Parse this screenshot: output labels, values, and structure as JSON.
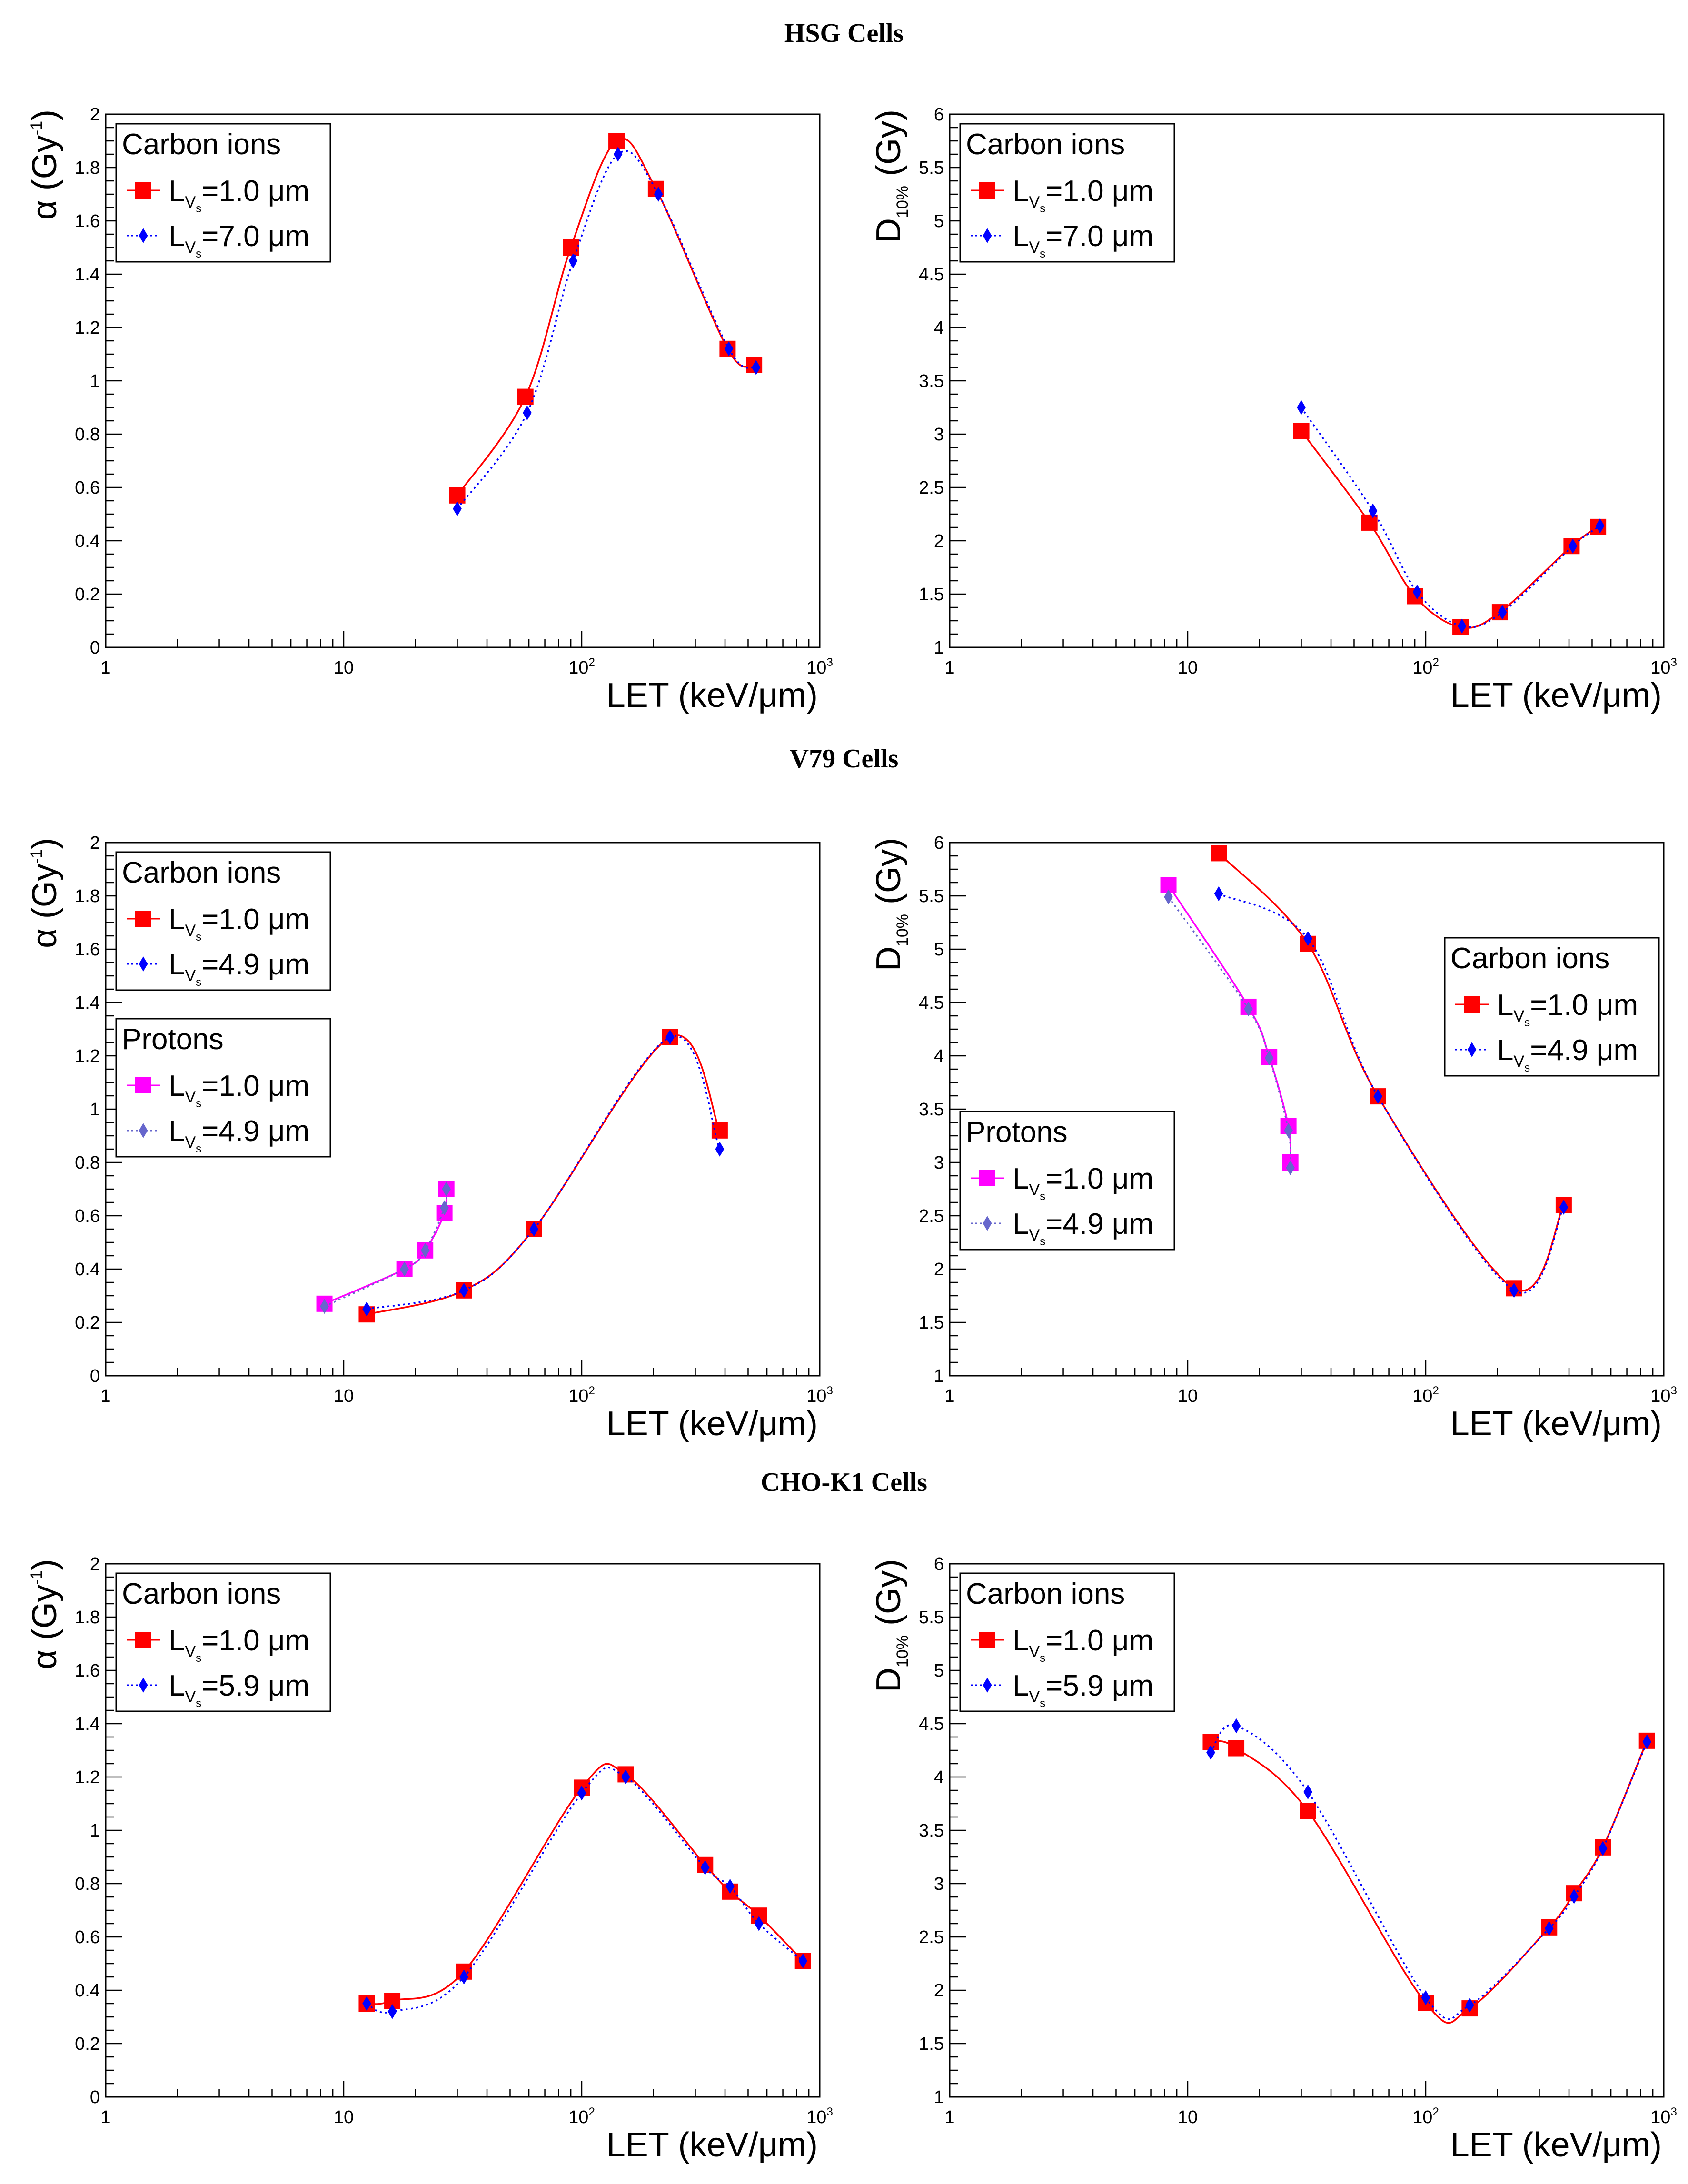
{
  "sections": [
    {
      "title": "HSG Cells"
    },
    {
      "title": "V79 Cells"
    },
    {
      "title": "CHO-K1 Cells"
    }
  ],
  "chart_data": [
    {
      "id": "hsg-alpha",
      "type": "line",
      "xscale": "log",
      "xlim": [
        1,
        1000
      ],
      "ylim": [
        0,
        2
      ],
      "xticks": [
        "1",
        "10",
        "10^2",
        "10^3"
      ],
      "yticks": [
        "0",
        "0.2",
        "0.4",
        "0.6",
        "0.8",
        "1",
        "1.2",
        "1.4",
        "1.6",
        "1.8",
        "2"
      ],
      "xlabel": "LET (keV/μm)",
      "ylabel": "α (Gy^-1)",
      "legends": [
        {
          "title": "Carbon ions",
          "position": "top-left",
          "entries": [
            {
              "text": "L_Vs=1.0 μm",
              "series": "Carbon ions L=1.0"
            },
            {
              "text": "L_Vs=7.0 μm",
              "series": "Carbon ions L=7.0"
            }
          ]
        }
      ],
      "series": [
        {
          "name": "Carbon ions L=1.0",
          "color": "#ff0000",
          "marker": "square",
          "style": "solid",
          "x": [
            30,
            58,
            90,
            140,
            205,
            410,
            530
          ],
          "y": [
            0.57,
            0.94,
            1.5,
            1.9,
            1.72,
            1.12,
            1.06
          ]
        },
        {
          "name": "Carbon ions L=7.0",
          "color": "#0000ff",
          "marker": "diamond",
          "style": "dotted",
          "x": [
            30,
            59,
            92,
            142,
            210,
            415,
            540
          ],
          "y": [
            0.52,
            0.88,
            1.45,
            1.85,
            1.7,
            1.12,
            1.05
          ]
        }
      ]
    },
    {
      "id": "hsg-d10",
      "type": "line",
      "xscale": "log",
      "xlim": [
        1,
        1000
      ],
      "ylim": [
        1,
        6
      ],
      "xticks": [
        "1",
        "10",
        "10^2",
        "10^3"
      ],
      "yticks": [
        "1",
        "1.5",
        "2",
        "2.5",
        "3",
        "3.5",
        "4",
        "4.5",
        "5",
        "5.5",
        "6"
      ],
      "xlabel": "LET (keV/μm)",
      "ylabel": "D10% (Gy)",
      "legends": [
        {
          "title": "Carbon ions",
          "position": "top-left",
          "entries": [
            {
              "text": "L_Vs=1.0 μm",
              "series": "Carbon ions L=1.0"
            },
            {
              "text": "L_Vs=7.0 μm",
              "series": "Carbon ions L=7.0"
            }
          ]
        }
      ],
      "series": [
        {
          "name": "Carbon ions L=1.0",
          "color": "#ff0000",
          "marker": "square",
          "style": "solid",
          "x": [
            30,
            58,
            90,
            140,
            205,
            410,
            530
          ],
          "y": [
            3.03,
            2.17,
            1.48,
            1.19,
            1.33,
            1.95,
            2.13
          ]
        },
        {
          "name": "Carbon ions L=7.0",
          "color": "#0000ff",
          "marker": "diamond",
          "style": "dotted",
          "x": [
            30,
            60,
            92,
            142,
            210,
            415,
            540
          ],
          "y": [
            3.25,
            2.28,
            1.52,
            1.2,
            1.33,
            1.95,
            2.14
          ]
        }
      ]
    },
    {
      "id": "v79-alpha",
      "type": "line",
      "xscale": "log",
      "xlim": [
        1,
        1000
      ],
      "ylim": [
        0,
        2
      ],
      "xticks": [
        "1",
        "10",
        "10^2",
        "10^3"
      ],
      "yticks": [
        "0",
        "0.2",
        "0.4",
        "0.6",
        "0.8",
        "1",
        "1.2",
        "1.4",
        "1.6",
        "1.8",
        "2"
      ],
      "xlabel": "LET (keV/μm)",
      "ylabel": "α (Gy^-1)",
      "legends": [
        {
          "title": "Carbon ions",
          "position": "top-left",
          "entries": [
            {
              "text": "L_Vs=1.0 μm",
              "series": "Carbon ions L=1.0"
            },
            {
              "text": "L_Vs=4.9 μm",
              "series": "Carbon ions L=4.9"
            }
          ]
        },
        {
          "title": "Protons",
          "position": "middle-left",
          "entries": [
            {
              "text": "L_Vs=1.0 μm",
              "series": "Protons L=1.0"
            },
            {
              "text": "L_Vs=4.9 μm",
              "series": "Protons L=4.9"
            }
          ]
        }
      ],
      "series": [
        {
          "name": "Carbon ions L=1.0",
          "color": "#ff0000",
          "marker": "square",
          "style": "solid",
          "x": [
            12.5,
            32,
            63,
            235,
            380
          ],
          "y": [
            0.23,
            0.32,
            0.55,
            1.27,
            0.92
          ]
        },
        {
          "name": "Carbon ions L=4.9",
          "color": "#0000ff",
          "marker": "diamond",
          "style": "dotted",
          "x": [
            12.5,
            32,
            63,
            235,
            380
          ],
          "y": [
            0.25,
            0.32,
            0.55,
            1.27,
            0.85
          ]
        },
        {
          "name": "Protons L=1.0",
          "color": "#ff00ff",
          "marker": "square",
          "style": "solid",
          "x": [
            8.3,
            18,
            22,
            26.5,
            27
          ],
          "y": [
            0.27,
            0.4,
            0.47,
            0.61,
            0.7
          ]
        },
        {
          "name": "Protons L=4.9",
          "color": "#6666cc",
          "marker": "diamond",
          "style": "dotted",
          "x": [
            8.3,
            18,
            22,
            26.5,
            27
          ],
          "y": [
            0.26,
            0.4,
            0.47,
            0.63,
            0.7
          ]
        }
      ]
    },
    {
      "id": "v79-d10",
      "type": "line",
      "xscale": "log",
      "xlim": [
        1,
        1000
      ],
      "ylim": [
        1,
        6
      ],
      "xticks": [
        "1",
        "10",
        "10^2",
        "10^3"
      ],
      "yticks": [
        "1",
        "1.5",
        "2",
        "2.5",
        "3",
        "3.5",
        "4",
        "4.5",
        "5",
        "5.5",
        "6"
      ],
      "xlabel": "LET (keV/μm)",
      "ylabel": "D10% (Gy)",
      "legends": [
        {
          "title": "Carbon ions",
          "position": "right",
          "entries": [
            {
              "text": "L_Vs=1.0 μm",
              "series": "Carbon ions L=1.0"
            },
            {
              "text": "L_Vs=4.9 μm",
              "series": "Carbon ions L=4.9"
            }
          ]
        },
        {
          "title": "Protons",
          "position": "bottom-left",
          "entries": [
            {
              "text": "L_Vs=1.0 μm",
              "series": "Protons L=1.0"
            },
            {
              "text": "L_Vs=4.9 μm",
              "series": "Protons L=4.9"
            }
          ]
        }
      ],
      "series": [
        {
          "name": "Carbon ions L=1.0",
          "color": "#ff0000",
          "marker": "square",
          "style": "solid",
          "x": [
            13.5,
            32,
            63,
            235,
            380
          ],
          "y": [
            5.9,
            5.05,
            3.62,
            1.82,
            2.6
          ]
        },
        {
          "name": "Carbon ions L=4.9",
          "color": "#0000ff",
          "marker": "diamond",
          "style": "dotted",
          "x": [
            13.5,
            32,
            63,
            235,
            380
          ],
          "y": [
            5.52,
            5.1,
            3.62,
            1.8,
            2.58
          ]
        },
        {
          "name": "Protons L=1.0",
          "color": "#ff00ff",
          "marker": "square",
          "style": "solid",
          "x": [
            8.3,
            18,
            22,
            26.5,
            27
          ],
          "y": [
            5.6,
            4.46,
            3.99,
            3.34,
            3.0
          ]
        },
        {
          "name": "Protons L=4.9",
          "color": "#6666cc",
          "marker": "diamond",
          "style": "dotted",
          "x": [
            8.3,
            18,
            22,
            26.5,
            27
          ],
          "y": [
            5.49,
            4.44,
            3.98,
            3.3,
            2.95
          ]
        }
      ]
    },
    {
      "id": "cho-alpha",
      "type": "line",
      "xscale": "log",
      "xlim": [
        1,
        1000
      ],
      "ylim": [
        0,
        2
      ],
      "xticks": [
        "1",
        "10",
        "10^2",
        "10^3"
      ],
      "yticks": [
        "0",
        "0.2",
        "0.4",
        "0.6",
        "0.8",
        "1",
        "1.2",
        "1.4",
        "1.6",
        "1.8",
        "2"
      ],
      "xlabel": "LET (keV/μm)",
      "ylabel": "α (Gy^-1)",
      "legends": [
        {
          "title": "Carbon ions",
          "position": "top-left",
          "entries": [
            {
              "text": "L_Vs=1.0 μm",
              "series": "Carbon ions L=1.0"
            },
            {
              "text": "L_Vs=5.9 μm",
              "series": "Carbon ions L=5.9"
            }
          ]
        }
      ],
      "series": [
        {
          "name": "Carbon ions L=1.0",
          "color": "#ff0000",
          "marker": "square",
          "style": "solid",
          "x": [
            12.5,
            16,
            32,
            100,
            153,
            330,
            420,
            555,
            850
          ],
          "y": [
            0.35,
            0.36,
            0.47,
            1.16,
            1.21,
            0.87,
            0.77,
            0.68,
            0.51
          ]
        },
        {
          "name": "Carbon ions L=5.9",
          "color": "#0000ff",
          "marker": "diamond",
          "style": "dotted",
          "x": [
            12.5,
            16,
            32,
            100,
            153,
            330,
            420,
            555,
            850
          ],
          "y": [
            0.35,
            0.32,
            0.45,
            1.14,
            1.2,
            0.86,
            0.79,
            0.65,
            0.51
          ]
        }
      ]
    },
    {
      "id": "cho-d10",
      "type": "line",
      "xscale": "log",
      "xlim": [
        1,
        1000
      ],
      "ylim": [
        1,
        6
      ],
      "xticks": [
        "1",
        "10",
        "10^2",
        "10^3"
      ],
      "yticks": [
        "1",
        "1.5",
        "2",
        "2.5",
        "3",
        "3.5",
        "4",
        "4.5",
        "5",
        "5.5",
        "6"
      ],
      "xlabel": "LET (keV/μm)",
      "ylabel": "D10% (Gy)",
      "legends": [
        {
          "title": "Carbon ions",
          "position": "top-left",
          "entries": [
            {
              "text": "L_Vs=1.0 μm",
              "series": "Carbon ions L=1.0"
            },
            {
              "text": "L_Vs=5.9 μm",
              "series": "Carbon ions L=5.9"
            }
          ]
        }
      ],
      "series": [
        {
          "name": "Carbon ions L=1.0",
          "color": "#ff0000",
          "marker": "square",
          "style": "solid",
          "x": [
            12.5,
            16,
            32,
            100,
            153,
            330,
            420,
            555,
            850
          ],
          "y": [
            4.33,
            4.27,
            3.68,
            1.88,
            1.83,
            2.59,
            2.91,
            3.34,
            4.34
          ]
        },
        {
          "name": "Carbon ions L=5.9",
          "color": "#0000ff",
          "marker": "diamond",
          "style": "dotted",
          "x": [
            12.5,
            16,
            32,
            100,
            153,
            330,
            420,
            555,
            850
          ],
          "y": [
            4.23,
            4.48,
            3.86,
            1.93,
            1.86,
            2.58,
            2.88,
            3.33,
            4.33
          ]
        }
      ]
    }
  ]
}
